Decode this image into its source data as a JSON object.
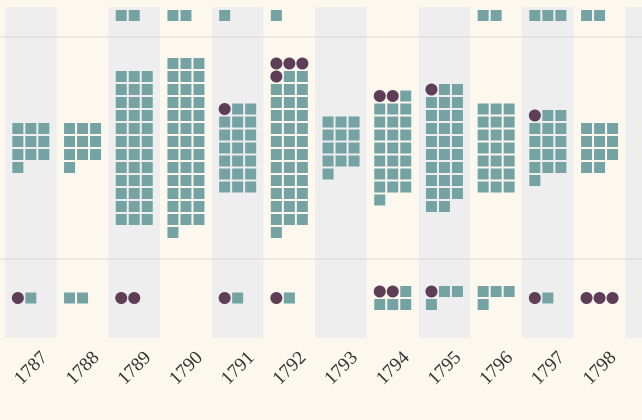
{
  "chart_data": {
    "type": "unit",
    "categories": [
      "1787",
      "1788",
      "1789",
      "1790",
      "1791",
      "1792",
      "1793",
      "1794",
      "1795",
      "1796",
      "1797",
      "1798"
    ],
    "circle_color": "#5e3e56",
    "square_color": "#75a3a4",
    "panels": [
      {
        "circles": [
          0,
          0,
          0,
          0,
          0,
          0,
          0,
          0,
          0,
          0,
          0,
          0
        ],
        "squares": [
          0,
          0,
          2,
          2,
          1,
          1,
          0,
          0,
          0,
          2,
          3,
          2
        ]
      },
      {
        "circles": [
          0,
          0,
          0,
          0,
          1,
          4,
          0,
          2,
          1,
          0,
          1,
          0
        ],
        "squares": [
          10,
          10,
          36,
          40,
          20,
          36,
          13,
          23,
          28,
          21,
          15,
          11
        ]
      },
      {
        "circles": [
          1,
          0,
          2,
          0,
          1,
          1,
          0,
          2,
          1,
          0,
          1,
          3
        ],
        "squares": [
          1,
          2,
          0,
          0,
          1,
          1,
          0,
          4,
          3,
          4,
          1,
          0
        ]
      }
    ]
  }
}
